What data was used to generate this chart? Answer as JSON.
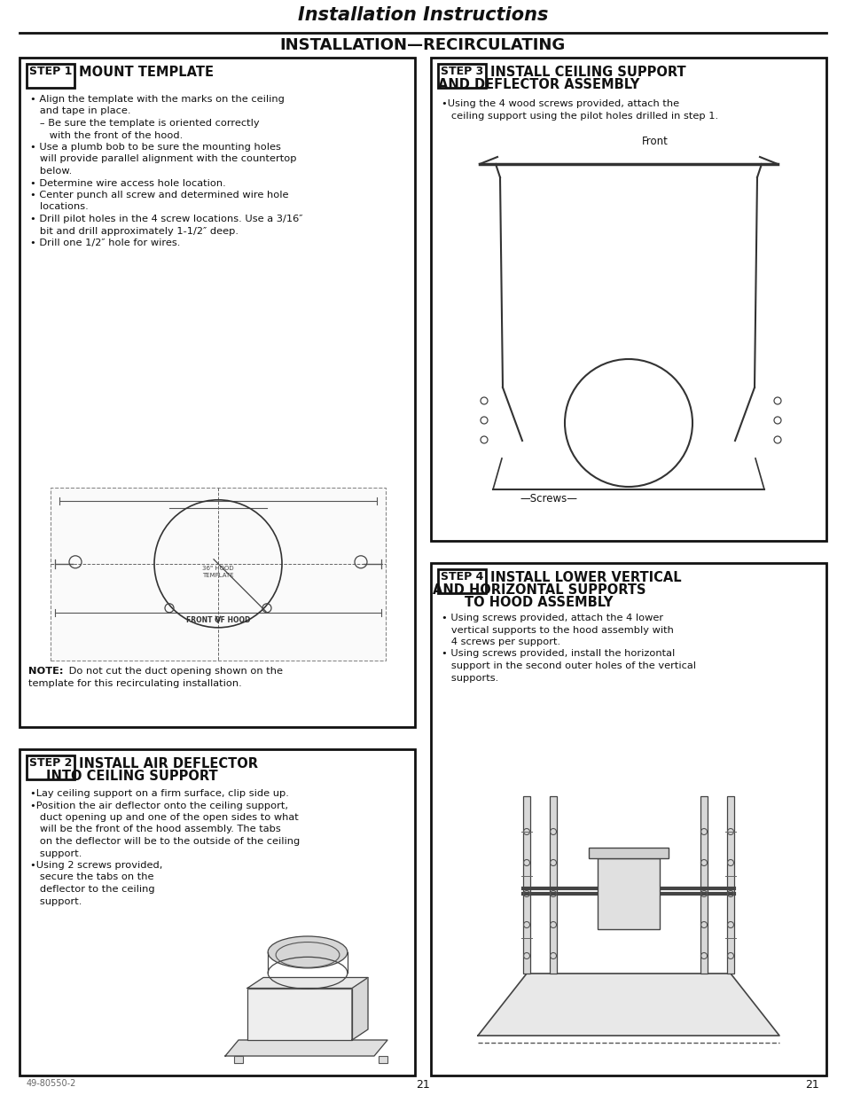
{
  "page_title": "Installation Instructions",
  "section_title": "INSTALLATION—RECIRCULATING",
  "bg_color": "#ffffff",
  "text_color": "#1a1a1a",
  "page_number": "21",
  "footer_left": "49-80550-2",
  "step1_bullets": [
    "• Align the template with the marks on the ceiling",
    "   and tape in place.",
    "   – Be sure the template is oriented correctly",
    "      with the front of the hood.",
    "• Use a plumb bob to be sure the mounting holes",
    "   will provide parallel alignment with the countertop",
    "   below.",
    "• Determine wire access hole location.",
    "• Center punch all screw and determined wire hole",
    "   locations.",
    "• Drill pilot holes in the 4 screw locations. Use a 3/16″",
    "   bit and drill approximately 1-1/2″ deep.",
    "• Drill one 1/2″ hole for wires."
  ],
  "step2_bullets": [
    "•Lay ceiling support on a firm surface, clip side up.",
    "•Position the air deflector onto the ceiling support,",
    "   duct opening up and one of the open sides to what",
    "   will be the front of the hood assembly. The tabs",
    "   on the deflector will be to the outside of the ceiling",
    "   support.",
    "•Using 2 screws provided,",
    "   secure the tabs on the",
    "   deflector to the ceiling",
    "   support."
  ],
  "step3_bullets": [
    "•Using the 4 wood screws provided, attach the",
    "   ceiling support using the pilot holes drilled in step 1."
  ],
  "step4_bullets": [
    "• Using screws provided, attach the 4 lower",
    "   vertical supports to the hood assembly with",
    "   4 screws per support.",
    "• Using screws provided, install the horizontal",
    "   support in the second outer holes of the vertical",
    "   supports."
  ]
}
